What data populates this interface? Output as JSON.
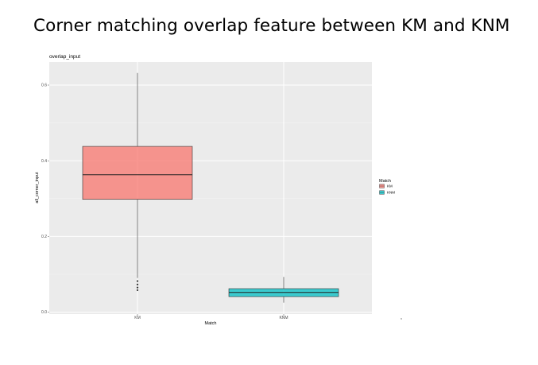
{
  "slide": {
    "title": "Corner matching overlap feature between KM and KNM",
    "stray_mark": ","
  },
  "chart_data": {
    "type": "boxplot",
    "title": "overlap_input",
    "xlabel": "Match",
    "ylabel": "all_corner_input",
    "categories": [
      "KM",
      "KNM"
    ],
    "ylim": [
      0.0,
      0.65
    ],
    "yticks": [
      0.0,
      0.2,
      0.4,
      0.6
    ],
    "ytick_labels": [
      "0.0",
      "0.2",
      "0.4",
      "0.6"
    ],
    "grid": true,
    "background": "#ebebeb",
    "legend": {
      "title": "Match",
      "position": "right",
      "entries": [
        "KM",
        "KNM"
      ]
    },
    "series": [
      {
        "name": "KM",
        "color": "#f8766d",
        "whisker_low": 0.09,
        "q1": 0.298,
        "median": 0.363,
        "q3": 0.438,
        "whisker_high": 0.632,
        "outliers": [
          0.058,
          0.065,
          0.073,
          0.082
        ]
      },
      {
        "name": "KNM",
        "color": "#00bfc4",
        "whisker_low": 0.025,
        "q1": 0.041,
        "median": 0.052,
        "q3": 0.062,
        "whisker_high": 0.093,
        "outliers": []
      }
    ]
  }
}
